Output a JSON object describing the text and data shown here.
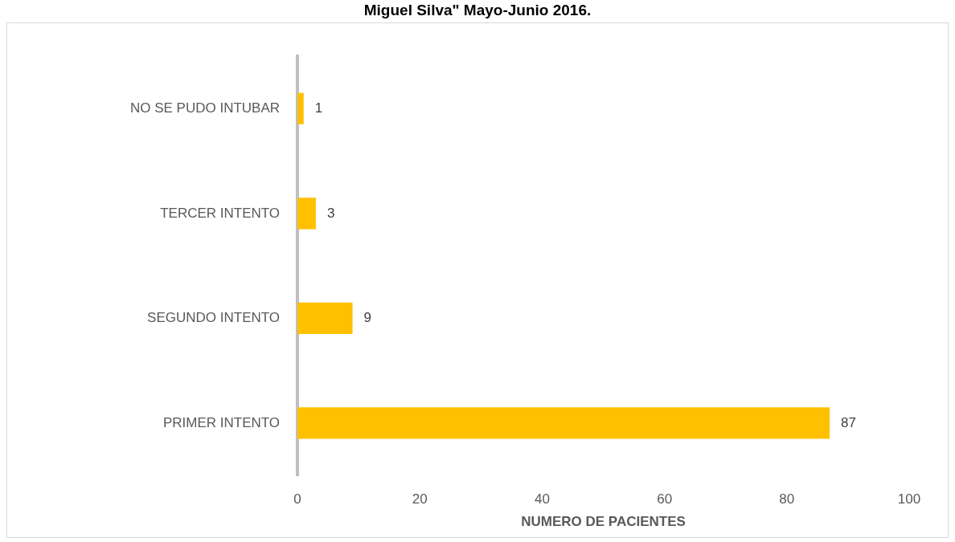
{
  "chart_data": {
    "type": "bar",
    "orientation": "horizontal",
    "title": "Miguel Silva\" Mayo-Junio 2016.",
    "xlabel": "NUMERO DE PACIENTES",
    "categories": [
      "NO SE PUDO INTUBAR",
      "TERCER INTENTO",
      "SEGUNDO INTENTO",
      "PRIMER INTENTO"
    ],
    "values": [
      1,
      3,
      9,
      87
    ],
    "color": "#ffc000",
    "data_labels": true,
    "grid": false,
    "legend": false,
    "xlim": [
      0,
      100
    ],
    "xticks": [
      0,
      20,
      40,
      60,
      80,
      100
    ]
  }
}
